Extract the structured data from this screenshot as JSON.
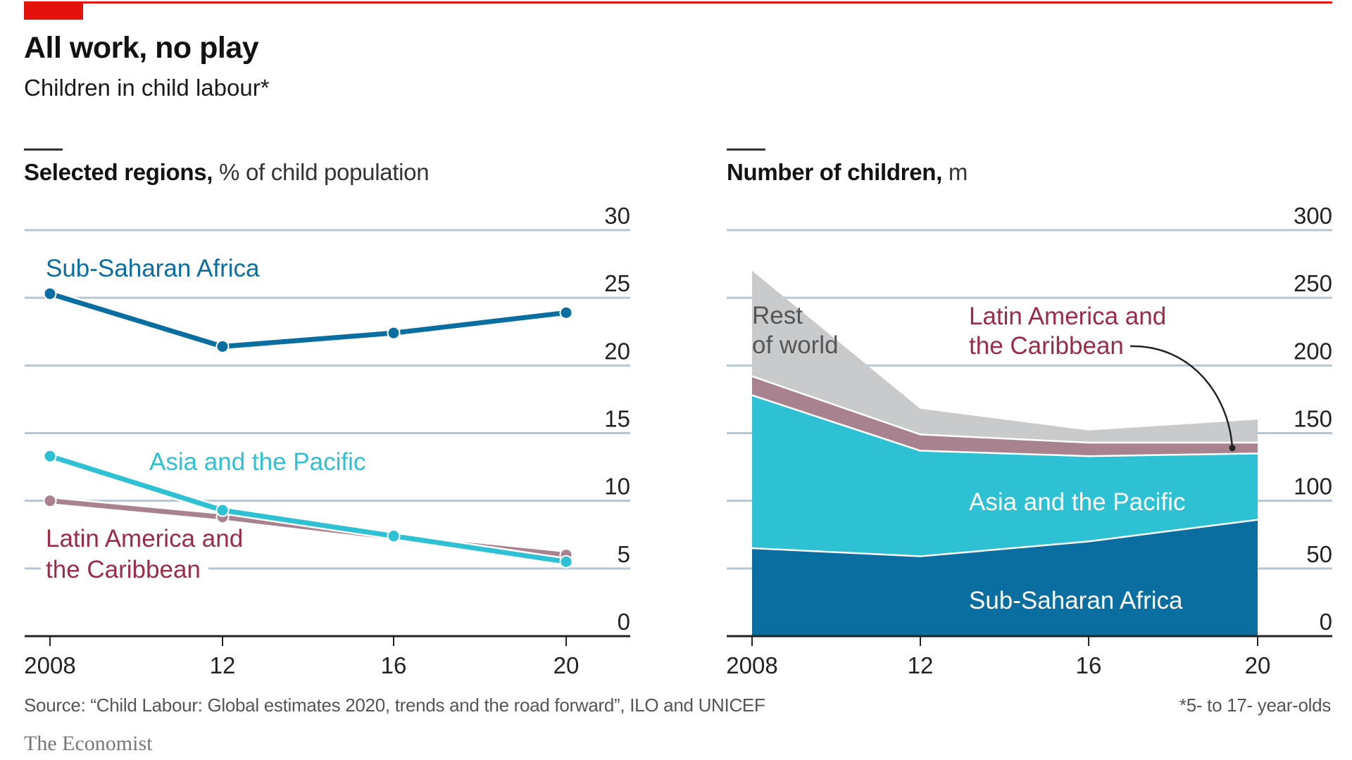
{
  "header": {
    "title": "All work, no play",
    "subtitle": "Children in child labour*"
  },
  "colors": {
    "accent_red": "#e3120b",
    "sub_saharan_africa": "#0a6ea1",
    "asia_pacific": "#2ec0d3",
    "latin_america": "#a8838f",
    "latin_america_text": "#9b2c47",
    "rest_of_world": "#c9cacc",
    "gridline": "#b7c6d0"
  },
  "chart_data": [
    {
      "type": "line",
      "title_bold": "Selected regions,",
      "title_unit": "% of child population",
      "x": [
        "2008",
        "12",
        "16",
        "20"
      ],
      "ylim": [
        0,
        30
      ],
      "yticks": [
        "0",
        "5",
        "10",
        "15",
        "20",
        "25",
        "30"
      ],
      "grid": true,
      "series": [
        {
          "name": "Sub-Saharan Africa",
          "label": "Sub-Saharan Africa",
          "values": [
            25.3,
            21.4,
            22.4,
            23.9
          ]
        },
        {
          "name": "Latin America and the Caribbean",
          "label_lines": [
            "Latin America and",
            "the Caribbean"
          ],
          "values": [
            10.0,
            8.8,
            7.3,
            6.0
          ]
        },
        {
          "name": "Asia and the Pacific",
          "label": "Asia and the Pacific",
          "values": [
            13.3,
            9.3,
            7.4,
            5.5
          ]
        }
      ]
    },
    {
      "type": "area",
      "stacked": true,
      "title_bold": "Number of children,",
      "title_unit": "m",
      "x": [
        "2008",
        "12",
        "16",
        "20"
      ],
      "ylim": [
        0,
        300
      ],
      "yticks": [
        "0",
        "50",
        "100",
        "150",
        "200",
        "250",
        "300"
      ],
      "grid": true,
      "series": [
        {
          "name": "Sub-Saharan Africa",
          "label": "Sub-Saharan Africa",
          "values": [
            65,
            59,
            70,
            86
          ]
        },
        {
          "name": "Asia and the Pacific",
          "label": "Asia and the Pacific",
          "values": [
            113,
            78,
            63,
            49
          ]
        },
        {
          "name": "Latin America and the Caribbean",
          "label_lines": [
            "Latin America and",
            "the Caribbean"
          ],
          "values": [
            14,
            12,
            10,
            8
          ]
        },
        {
          "name": "Rest of world",
          "label_lines": [
            "Rest",
            "of world"
          ],
          "values": [
            78,
            19,
            9,
            17
          ]
        }
      ]
    }
  ],
  "footer": {
    "source": "Source: “Child Labour: Global estimates 2020, trends and the road forward”, ILO and UNICEF",
    "footnote": "*5- to 17- year-olds",
    "brand": "The Economist"
  }
}
